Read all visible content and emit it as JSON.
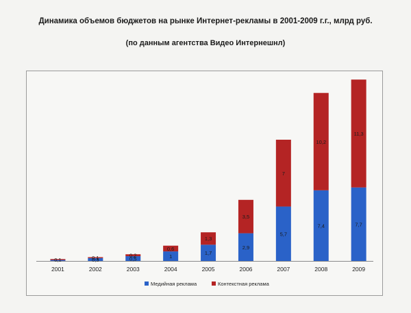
{
  "title": "Динамика объемов бюджетов на рынке Интернет-рекламы в 2001-2009 г.г., млрд руб.",
  "subtitle": "(по данным агентства Видео Интернешнл)",
  "colors": {
    "media": "#2a62c8",
    "context": "#b42424"
  },
  "chart_data": {
    "type": "bar",
    "stacked": true,
    "title": "Динамика объемов бюджетов на рынке Интернет-рекламы в 2001-2009 г.г., млрд руб.",
    "subtitle": "(по данным агентства Видео Интернешнл)",
    "categories": [
      "2001",
      "2002",
      "2003",
      "2004",
      "2005",
      "2006",
      "2007",
      "2008",
      "2009"
    ],
    "series": [
      {
        "name": "Медийная реклама",
        "values": [
          0.1,
          0.3,
          0.5,
          1,
          1.7,
          2.9,
          5.7,
          7.4,
          7.7
        ],
        "labels": [
          "",
          "0,3",
          "0,5",
          "1",
          "1,7",
          "2,9",
          "5,7",
          "7,4",
          "7,7"
        ]
      },
      {
        "name": "Контекстная реклама",
        "values": [
          0.1,
          0.1,
          0.2,
          0.6,
          1.3,
          3.5,
          7,
          10.2,
          11.3
        ],
        "labels": [
          "0,1",
          "0,1",
          "0,2",
          "0,6",
          "1,3",
          "3,5",
          "7",
          "10,2",
          "11,3"
        ]
      }
    ],
    "ylim": [
      0,
      19.3
    ],
    "grid": false,
    "legend": "bottom-center"
  }
}
